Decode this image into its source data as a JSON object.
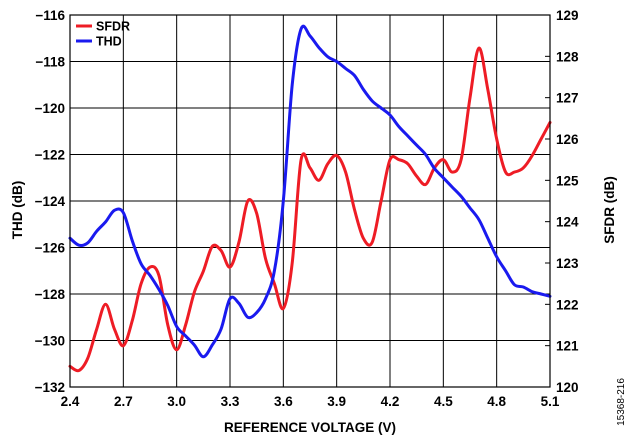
{
  "chart_data": {
    "type": "line",
    "xlabel": "REFERENCE VOLTAGE (V)",
    "ylabel_left": "THD (dB)",
    "ylabel_right": "SFDR (dB)",
    "figure_id": "15368-216",
    "xlim": [
      2.4,
      5.1
    ],
    "ylim_left": [
      -132,
      -116
    ],
    "ylim_right": [
      120,
      129
    ],
    "x_ticks": [
      "2.4",
      "2.7",
      "3.0",
      "3.3",
      "3.6",
      "3.9",
      "4.2",
      "4.5",
      "4.8",
      "5.1"
    ],
    "y_ticks_left": [
      "−116",
      "−118",
      "−120",
      "−122",
      "−124",
      "−126",
      "−128",
      "−130",
      "−132"
    ],
    "y_ticks_right": [
      "129",
      "128",
      "127",
      "126",
      "125",
      "124",
      "123",
      "122",
      "121",
      "120"
    ],
    "grid": true,
    "legend_position": "top-left",
    "series": [
      {
        "name": "SFDR",
        "color": "#ee1c25",
        "axis": "right",
        "x": [
          2.4,
          2.45,
          2.5,
          2.55,
          2.6,
          2.65,
          2.7,
          2.75,
          2.8,
          2.85,
          2.9,
          2.95,
          3.0,
          3.05,
          3.1,
          3.15,
          3.2,
          3.25,
          3.3,
          3.35,
          3.4,
          3.45,
          3.5,
          3.55,
          3.6,
          3.65,
          3.7,
          3.75,
          3.8,
          3.85,
          3.9,
          3.95,
          4.0,
          4.05,
          4.1,
          4.15,
          4.2,
          4.25,
          4.3,
          4.35,
          4.4,
          4.45,
          4.5,
          4.55,
          4.6,
          4.65,
          4.7,
          4.75,
          4.8,
          4.85,
          4.9,
          4.95,
          5.0,
          5.05,
          5.1
        ],
        "y": [
          120.5,
          120.4,
          120.7,
          121.4,
          122.0,
          121.4,
          121.0,
          121.6,
          122.5,
          122.9,
          122.7,
          121.5,
          120.9,
          121.5,
          122.3,
          122.8,
          123.4,
          123.3,
          122.9,
          123.5,
          124.5,
          124.2,
          123.1,
          122.5,
          121.9,
          123.0,
          125.5,
          125.3,
          125.0,
          125.4,
          125.6,
          125.2,
          124.3,
          123.6,
          123.5,
          124.5,
          125.5,
          125.5,
          125.4,
          125.1,
          124.9,
          125.3,
          125.5,
          125.2,
          125.5,
          127.0,
          128.2,
          127.2,
          126.0,
          125.2,
          125.2,
          125.3,
          125.6,
          126.0,
          126.4
        ]
      },
      {
        "name": "THD",
        "color": "#1a1aef",
        "axis": "left",
        "x": [
          2.4,
          2.45,
          2.5,
          2.55,
          2.6,
          2.65,
          2.7,
          2.75,
          2.8,
          2.85,
          2.9,
          2.95,
          3.0,
          3.05,
          3.1,
          3.15,
          3.2,
          3.25,
          3.3,
          3.35,
          3.4,
          3.45,
          3.5,
          3.55,
          3.6,
          3.65,
          3.7,
          3.75,
          3.8,
          3.85,
          3.9,
          3.95,
          4.0,
          4.05,
          4.1,
          4.15,
          4.2,
          4.25,
          4.3,
          4.35,
          4.4,
          4.45,
          4.5,
          4.55,
          4.6,
          4.65,
          4.7,
          4.75,
          4.8,
          4.85,
          4.9,
          4.95,
          5.0,
          5.05,
          5.1
        ],
        "y": [
          -125.6,
          -125.9,
          -125.8,
          -125.3,
          -124.9,
          -124.4,
          -124.5,
          -125.7,
          -126.7,
          -127.2,
          -127.8,
          -128.5,
          -129.4,
          -129.8,
          -130.2,
          -130.7,
          -130.2,
          -129.5,
          -128.2,
          -128.4,
          -129.0,
          -128.8,
          -128.2,
          -127.0,
          -124.0,
          -119.0,
          -116.6,
          -116.9,
          -117.4,
          -117.8,
          -118.0,
          -118.3,
          -118.6,
          -119.2,
          -119.7,
          -120.0,
          -120.3,
          -120.8,
          -121.2,
          -121.6,
          -122.0,
          -122.6,
          -123.0,
          -123.4,
          -123.8,
          -124.3,
          -124.8,
          -125.6,
          -126.4,
          -127.0,
          -127.6,
          -127.7,
          -127.9,
          -128.0,
          -128.1
        ]
      }
    ]
  }
}
